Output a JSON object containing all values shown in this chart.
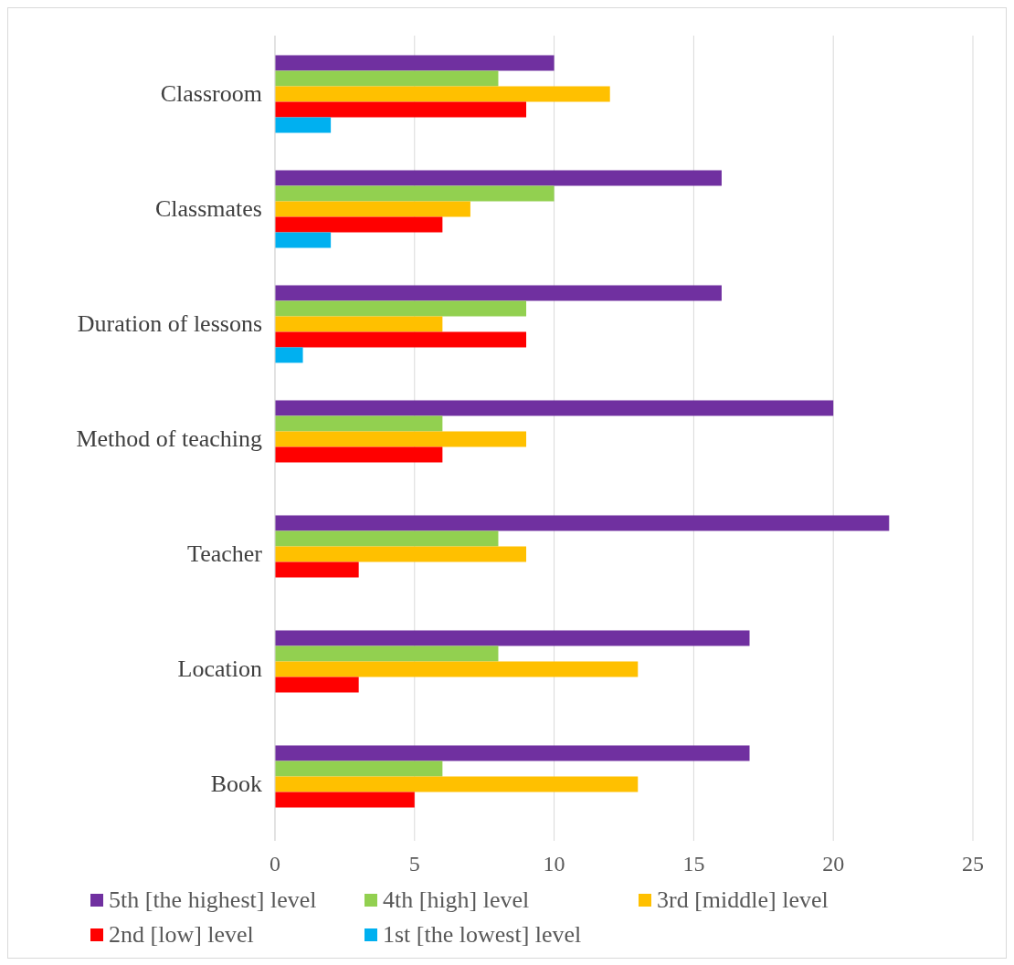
{
  "chart_data": {
    "type": "bar",
    "orientation": "horizontal",
    "categories": [
      "Classroom",
      "Classmates",
      "Duration of lessons",
      "Method of teaching",
      "Teacher",
      "Location",
      "Book"
    ],
    "series": [
      {
        "name": "5th [the highest] level",
        "color": "#7030a0",
        "values": [
          10,
          16,
          16,
          20,
          22,
          17,
          17
        ]
      },
      {
        "name": "4th [high] level",
        "color": "#92d050",
        "values": [
          8,
          10,
          9,
          6,
          8,
          8,
          6
        ]
      },
      {
        "name": "3rd [middle] level",
        "color": "#ffc000",
        "values": [
          12,
          7,
          6,
          9,
          9,
          13,
          13
        ]
      },
      {
        "name": "2nd [low] level",
        "color": "#ff0000",
        "values": [
          9,
          6,
          9,
          6,
          3,
          3,
          5
        ]
      },
      {
        "name": "1st [the lowest] level",
        "color": "#00b0f0",
        "values": [
          2,
          2,
          1,
          0,
          0,
          0,
          0
        ]
      }
    ],
    "xlim": [
      0,
      25
    ],
    "xticks": [
      0,
      5,
      10,
      15,
      20,
      25
    ],
    "grid": "x",
    "legend": "bottom"
  }
}
